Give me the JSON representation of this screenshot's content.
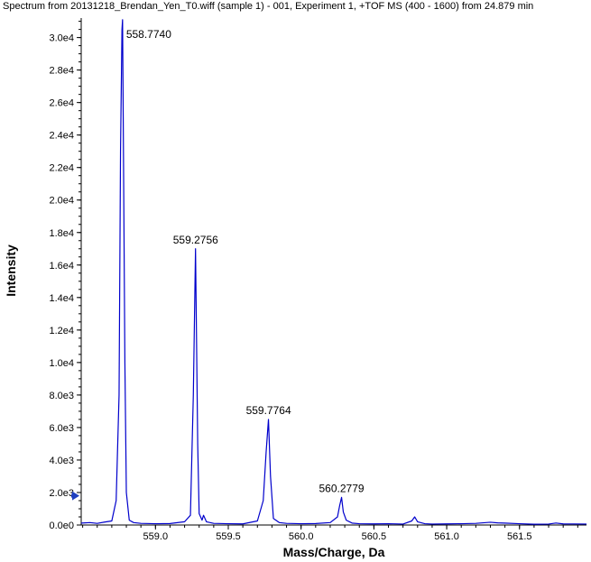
{
  "chart_data": {
    "type": "line",
    "title": "Spectrum from 20131218_Brendan_Yen_T0.wiff (sample 1) - 001, Experiment 1, +TOF MS (400 - 1600) from 24.879 min",
    "xlabel": "Mass/Charge, Da",
    "ylabel": "Intensity",
    "xlim": [
      558.49,
      561.96
    ],
    "ylim": [
      0,
      31200
    ],
    "x_ticks": [
      559.0,
      559.5,
      560.0,
      560.5,
      561.0,
      561.5
    ],
    "x_tick_labels": [
      "559.0",
      "559.5",
      "560.0",
      "560.5",
      "561.0",
      "561.5"
    ],
    "y_ticks": [
      0,
      2000,
      4000,
      6000,
      8000,
      10000,
      12000,
      14000,
      16000,
      18000,
      20000,
      22000,
      24000,
      26000,
      28000,
      30000
    ],
    "y_tick_labels": [
      "0.0e0",
      "2.0e3",
      "4.0e3",
      "6.0e3",
      "8.0e3",
      "1.0e4",
      "1.2e4",
      "1.4e4",
      "1.6e4",
      "1.8e4",
      "2.0e4",
      "2.2e4",
      "2.4e4",
      "2.6e4",
      "2.8e4",
      "3.0e4"
    ],
    "grid": false,
    "line_color": "#0000cc",
    "axis_color": "#000000",
    "marker_color": "#1f3fbf",
    "y_marker_value": 1800,
    "series": [
      {
        "x": [
          558.49,
          558.55,
          558.6,
          558.65,
          558.7,
          558.73,
          558.75,
          558.76,
          558.77,
          558.774,
          558.79,
          558.8,
          558.82,
          558.85,
          558.9,
          559.0,
          559.1,
          559.2,
          559.24,
          559.26,
          559.275,
          559.29,
          559.3,
          559.32,
          559.33,
          559.35,
          559.4,
          559.5,
          559.6,
          559.7,
          559.74,
          559.76,
          559.776,
          559.79,
          559.81,
          559.85,
          559.9,
          560.0,
          560.1,
          560.2,
          560.25,
          560.265,
          560.278,
          560.29,
          560.31,
          560.35,
          560.4,
          560.5,
          560.6,
          560.7,
          560.76,
          560.78,
          560.8,
          560.85,
          560.9,
          561.0,
          561.1,
          561.2,
          561.3,
          561.35,
          561.4,
          561.5,
          561.6,
          561.7,
          561.75,
          561.8,
          561.96
        ],
        "y": [
          120,
          150,
          100,
          180,
          250,
          1500,
          8000,
          23000,
          30500,
          31100,
          10000,
          2000,
          300,
          150,
          100,
          80,
          90,
          200,
          600,
          8000,
          17000,
          5000,
          700,
          300,
          600,
          200,
          100,
          80,
          70,
          250,
          1500,
          4500,
          6500,
          3000,
          400,
          150,
          100,
          80,
          90,
          150,
          500,
          1200,
          1700,
          800,
          300,
          120,
          80,
          70,
          80,
          60,
          250,
          500,
          200,
          80,
          60,
          70,
          80,
          100,
          170,
          130,
          120,
          80,
          50,
          60,
          120,
          70,
          60
        ]
      }
    ],
    "annotations": [
      {
        "x": 558.774,
        "y": 31100,
        "text": "558.7740",
        "align": "start"
      },
      {
        "x": 559.2756,
        "y": 17000,
        "text": "559.2756",
        "align": "middle"
      },
      {
        "x": 559.7764,
        "y": 6500,
        "text": "559.7764",
        "align": "middle"
      },
      {
        "x": 560.2779,
        "y": 1700,
        "text": "560.2779",
        "align": "middle"
      }
    ]
  }
}
